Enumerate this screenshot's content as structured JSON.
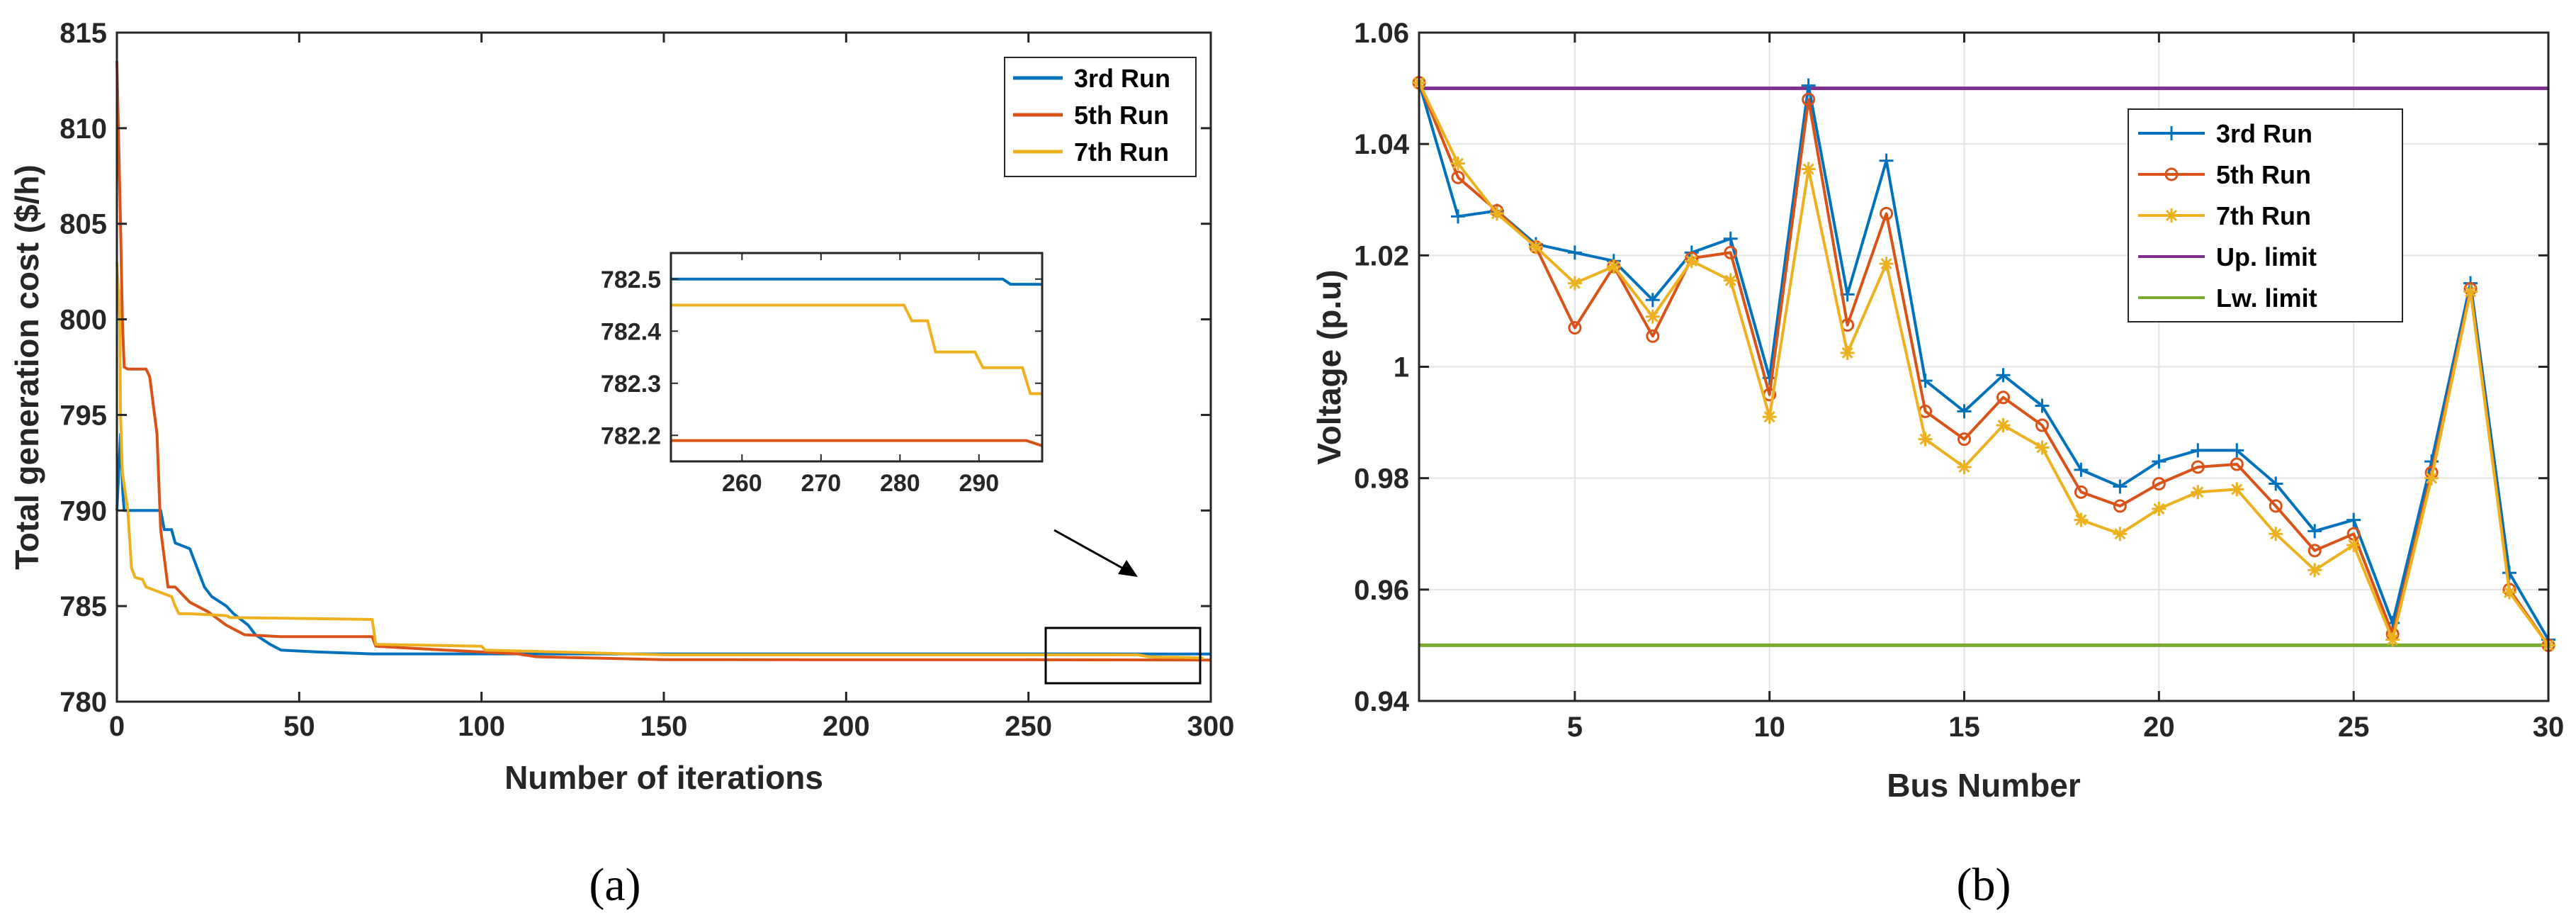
{
  "chart_data": [
    {
      "type": "line",
      "panel_label": "(a)",
      "xlabel": "Number of iterations",
      "ylabel": "Total generation cost ($/h)",
      "xlim": [
        0,
        300
      ],
      "ylim": [
        780,
        815
      ],
      "xticks": [
        0,
        50,
        100,
        150,
        200,
        250,
        300
      ],
      "yticks": [
        780,
        785,
        790,
        795,
        800,
        805,
        810,
        815
      ],
      "legend_position": "top-right",
      "series": [
        {
          "name": "3rd Run",
          "color": "#0072BD",
          "x": [
            0,
            1,
            1.6,
            2,
            12,
            13,
            15,
            16,
            20,
            22,
            24,
            26,
            30,
            32,
            34,
            36,
            38,
            42,
            45,
            55,
            70,
            100,
            150,
            200,
            250,
            295,
            300
          ],
          "y": [
            790,
            794,
            791,
            790,
            790,
            789,
            789,
            788.3,
            788,
            787,
            786,
            785.5,
            785,
            784.6,
            784.3,
            784,
            783.5,
            783,
            782.7,
            782.6,
            782.5,
            782.5,
            782.5,
            782.5,
            782.5,
            782.49,
            782.49
          ]
        },
        {
          "name": "5th Run",
          "color": "#D95319",
          "x": [
            0,
            1,
            1.5,
            2,
            3,
            8,
            9,
            11,
            12,
            14,
            16,
            18,
            20,
            25,
            30,
            35,
            45,
            70,
            71,
            90,
            110,
            115,
            150,
            200,
            250,
            298,
            300
          ],
          "y": [
            813.5,
            805,
            800,
            797.5,
            797.4,
            797.4,
            797,
            794,
            789,
            786,
            786,
            785.6,
            785.2,
            784.7,
            784,
            783.5,
            783.4,
            783.4,
            782.9,
            782.7,
            782.5,
            782.35,
            782.2,
            782.19,
            782.19,
            782.18,
            782.18
          ]
        },
        {
          "name": "7th Run",
          "color": "#EDB120",
          "x": [
            0,
            0.8,
            1,
            1.5,
            3,
            4,
            5,
            7,
            8,
            15,
            16,
            17,
            20,
            30,
            31,
            70,
            71,
            100,
            101,
            150,
            200,
            250,
            280,
            283,
            287,
            290,
            295,
            298
          ],
          "y": [
            803,
            800,
            795,
            792,
            790,
            787,
            786.5,
            786.4,
            786,
            785.5,
            785,
            784.6,
            784.6,
            784.5,
            784.4,
            784.3,
            783,
            782.9,
            782.7,
            782.45,
            782.45,
            782.45,
            782.45,
            782.35,
            782.33,
            782.33,
            782.3,
            782.28
          ]
        }
      ],
      "inset": {
        "xlim": [
          251,
          298
        ],
        "ylim": [
          782.15,
          782.55
        ],
        "xticks": [
          260,
          270,
          280,
          290
        ],
        "yticks": [
          782.2,
          782.3,
          782.4,
          782.5
        ],
        "ytick_labels": [
          "782.2",
          "782.3",
          "782.4",
          "782.5"
        ],
        "series": [
          {
            "name": "3rd Run",
            "color": "#0072BD",
            "x": [
              251,
              293,
              294,
              298
            ],
            "y": [
              782.5,
              782.5,
              782.49,
              782.49
            ]
          },
          {
            "name": "5th Run",
            "color": "#D95319",
            "x": [
              251,
              296,
              298
            ],
            "y": [
              782.19,
              782.19,
              782.18
            ]
          },
          {
            "name": "7th Run",
            "color": "#EDB120",
            "x": [
              251,
              280.5,
              281.5,
              283.5,
              284.5,
              289.5,
              290.5,
              295.5,
              296.5,
              298
            ],
            "y": [
              782.45,
              782.45,
              782.42,
              782.42,
              782.36,
              782.36,
              782.33,
              782.33,
              782.28,
              782.28
            ]
          }
        ]
      }
    },
    {
      "type": "line",
      "panel_label": "(b)",
      "xlabel": "Bus Number",
      "ylabel": "Voltage (p.u)",
      "xlim": [
        1,
        30
      ],
      "ylim": [
        0.94,
        1.06
      ],
      "xticks": [
        5,
        10,
        15,
        20,
        25,
        30
      ],
      "yticks": [
        0.94,
        0.96,
        0.98,
        1.0,
        1.02,
        1.04,
        1.06
      ],
      "ytick_labels": [
        "0.94",
        "0.96",
        "0.98",
        "1",
        "1.02",
        "1.04",
        "1.06"
      ],
      "legend_position": "top-right",
      "x": [
        1,
        2,
        3,
        4,
        5,
        6,
        7,
        8,
        9,
        10,
        11,
        12,
        13,
        14,
        15,
        16,
        17,
        18,
        19,
        20,
        21,
        22,
        23,
        24,
        25,
        26,
        27,
        28,
        29,
        30
      ],
      "series": [
        {
          "name": "3rd Run",
          "color": "#0072BD",
          "marker": "+",
          "values": [
            1.051,
            1.027,
            1.028,
            1.022,
            1.0205,
            1.019,
            1.012,
            1.0205,
            1.023,
            0.998,
            1.0505,
            1.013,
            1.037,
            0.9975,
            0.992,
            0.9985,
            0.993,
            0.9815,
            0.9785,
            0.983,
            0.985,
            0.985,
            0.979,
            0.9705,
            0.9725,
            0.954,
            0.983,
            1.015,
            0.963,
            0.951
          ]
        },
        {
          "name": "5th Run",
          "color": "#D95319",
          "marker": "o",
          "values": [
            1.051,
            1.034,
            1.028,
            1.0215,
            1.007,
            1.018,
            1.0055,
            1.0195,
            1.0205,
            0.995,
            1.048,
            1.0075,
            1.0275,
            0.992,
            0.987,
            0.9945,
            0.9895,
            0.9775,
            0.975,
            0.979,
            0.982,
            0.9825,
            0.975,
            0.967,
            0.97,
            0.952,
            0.981,
            1.014,
            0.96,
            0.95
          ]
        },
        {
          "name": "7th Run",
          "color": "#EDB120",
          "marker": "*",
          "values": [
            1.051,
            1.0365,
            1.0275,
            1.0215,
            1.015,
            1.018,
            1.009,
            1.019,
            1.0155,
            0.991,
            1.0355,
            1.0025,
            1.0185,
            0.987,
            0.982,
            0.9895,
            0.9855,
            0.9725,
            0.97,
            0.9745,
            0.9775,
            0.978,
            0.97,
            0.9635,
            0.968,
            0.951,
            0.98,
            1.0135,
            0.9595,
            0.95
          ]
        },
        {
          "name": "Up. limit",
          "color": "#7E2F8E",
          "marker": "none",
          "constant": 1.05
        },
        {
          "name": "Lw. limit",
          "color": "#77AC30",
          "marker": "none",
          "constant": 0.95
        }
      ]
    }
  ]
}
